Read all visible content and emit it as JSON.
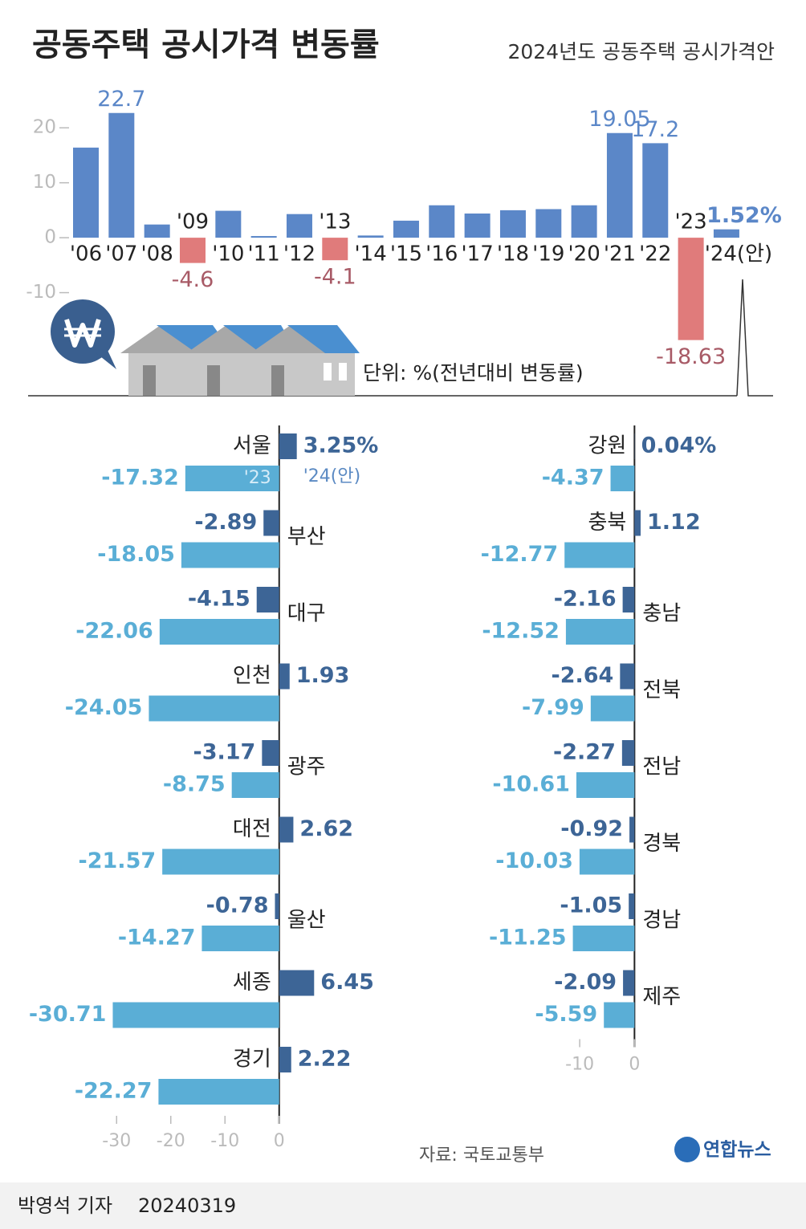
{
  "title": "공동주택 공시가격 변동률",
  "subtitle": "2024년도 공동주택 공시가격안",
  "unit_note": "단위: %(전년대비 변동률)",
  "source": "자료: 국토교통부",
  "byline": "박영석 기자",
  "date": "20240319",
  "logo": "연합뉴스",
  "chart_data": [
    {
      "type": "bar",
      "color": "#5b87c8",
      "negative_color": "#e07b7b",
      "label_color": "#5b87c8",
      "negative_label_color": "#a85a66",
      "categories": [
        "'06",
        "'07",
        "'08",
        "'09",
        "'10",
        "'11",
        "'12",
        "'13",
        "'14",
        "'15",
        "'16",
        "'17",
        "'18",
        "'19",
        "'20",
        "'21",
        "'22",
        "'23",
        "'24(안)"
      ],
      "values": [
        16.4,
        22.7,
        2.4,
        -4.6,
        4.9,
        0.3,
        4.3,
        -4.1,
        0.4,
        3.1,
        5.9,
        4.4,
        5.0,
        5.2,
        5.9,
        19.05,
        17.2,
        -18.63,
        1.52
      ],
      "value_labels": [
        null,
        "22.7",
        null,
        "-4.6",
        null,
        null,
        null,
        "-4.1",
        null,
        null,
        null,
        null,
        null,
        null,
        null,
        "19.05",
        "17.2",
        "-18.63",
        "1.52%"
      ],
      "ylim": [
        -20,
        25
      ],
      "yticks": [
        20,
        10,
        0,
        -10
      ],
      "grid": false
    },
    {
      "type": "hbar",
      "categories": [
        "서울",
        "부산",
        "대구",
        "인천",
        "광주",
        "대전",
        "울산",
        "세종",
        "경기"
      ],
      "series": [
        {
          "name": "'24(안)",
          "color": "#3d6596",
          "values": [
            3.25,
            -2.89,
            -4.15,
            1.93,
            -3.17,
            2.62,
            -0.78,
            6.45,
            2.22
          ],
          "value_labels": [
            "3.25%",
            "-2.89",
            "-4.15",
            "1.93",
            "-3.17",
            "2.62",
            "-0.78",
            "6.45",
            "2.22"
          ]
        },
        {
          "name": "'23",
          "color": "#5aaed6",
          "values": [
            -17.32,
            -18.05,
            -22.06,
            -24.05,
            -8.75,
            -21.57,
            -14.27,
            -30.71,
            -22.27
          ]
        }
      ],
      "xlim": [
        -33,
        7
      ],
      "xticks": [
        -30,
        -20,
        -10,
        0
      ]
    },
    {
      "type": "hbar",
      "categories": [
        "강원",
        "충북",
        "충남",
        "전북",
        "전남",
        "경북",
        "경남",
        "제주"
      ],
      "series": [
        {
          "color": "#3d6596",
          "values": [
            0.04,
            1.12,
            -2.16,
            -2.64,
            -2.27,
            -0.92,
            -1.05,
            -2.09
          ],
          "value_labels": [
            "0.04%",
            "1.12",
            "-2.16",
            "-2.64",
            "-2.27",
            "-0.92",
            "-1.05",
            "-2.09"
          ]
        },
        {
          "color": "#5aaed6",
          "values": [
            -4.37,
            -12.77,
            -12.52,
            -7.99,
            -10.61,
            -10.03,
            -11.25,
            -5.59
          ]
        }
      ],
      "xlim": [
        -15,
        2
      ],
      "xticks": [
        -10,
        0
      ]
    }
  ]
}
